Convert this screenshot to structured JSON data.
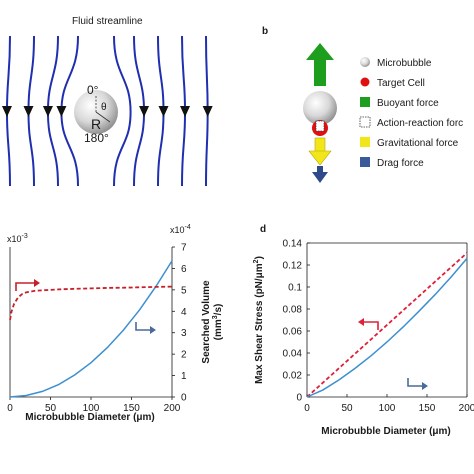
{
  "panel_a": {
    "title": "Fluid streamline",
    "angle_top": "0°",
    "angle_bottom": "180°",
    "theta_label": "θ",
    "radius_label": "R"
  },
  "panel_b": {
    "label": "b",
    "legend": [
      {
        "text": "Microbubble",
        "symbol": "sphere",
        "color": "#cfcfcf"
      },
      {
        "text": "Target Cell",
        "symbol": "circle",
        "color": "#e01010"
      },
      {
        "text": "Buoyant force",
        "symbol": "square",
        "color": "#1e9e1e"
      },
      {
        "text": "Action-reaction forc",
        "symbol": "dashed-square",
        "color": "#ffffff"
      },
      {
        "text": "Gravitational force",
        "symbol": "square",
        "color": "#f2e51a"
      },
      {
        "text": "Drag force",
        "symbol": "square",
        "color": "#3a5a9a"
      }
    ]
  },
  "colors": {
    "streamline": "#1f2fb0",
    "curve_blue": "#3d8fd0",
    "curve_red": "#c8202a",
    "arrow_slate": "#4a6a9a"
  },
  "chart_data": [
    {
      "panel": "c",
      "type": "line",
      "xlabel": "Microbubble Diameter (μm)",
      "x_ticks": [
        "0",
        "50",
        "100",
        "150",
        "200"
      ],
      "xlim": [
        0,
        200
      ],
      "y_left_multiplier": "x10",
      "y_left_multiplier_exp": "-3",
      "y_right_multiplier": "x10",
      "y_right_multiplier_exp": "-4",
      "ylabel_right": "Searched Volume",
      "ylabel_right_units": "(mm",
      "ylabel_right_units_exp": "3",
      "ylabel_right_units_tail": "/s)",
      "y_right_ticks": [
        "0",
        "1",
        "2",
        "3",
        "4",
        "5",
        "6",
        "7"
      ],
      "ylim_right": [
        0,
        7
      ],
      "ylim_left": [
        0,
        7
      ],
      "series": [
        {
          "axis": "right",
          "style": "solid",
          "color": "#3d8fd0",
          "x": [
            0,
            20,
            40,
            60,
            80,
            100,
            120,
            140,
            160,
            180,
            200
          ],
          "y": [
            0,
            0.07,
            0.26,
            0.58,
            1.03,
            1.6,
            2.3,
            3.12,
            4.07,
            5.15,
            6.35
          ]
        },
        {
          "axis": "left",
          "style": "dashed",
          "color": "#c8202a",
          "x": [
            0,
            2,
            5,
            10,
            15,
            20,
            30,
            40,
            60,
            80,
            100,
            120,
            140,
            160,
            180,
            200
          ],
          "y": [
            3.6,
            4.0,
            4.35,
            4.65,
            4.8,
            4.88,
            4.95,
            4.98,
            5.02,
            5.05,
            5.07,
            5.09,
            5.1,
            5.12,
            5.14,
            5.15
          ]
        }
      ]
    },
    {
      "panel": "d",
      "type": "line",
      "label": "d",
      "xlabel": "Microbubble Diameter (μm)",
      "ylabel": "Max Shear Stress (pN/μm",
      "ylabel_exp": "2",
      "ylabel_tail": ")",
      "x_ticks": [
        "0",
        "50",
        "100",
        "150",
        "200"
      ],
      "xlim": [
        0,
        200
      ],
      "y_ticks": [
        "0",
        "0.02",
        "0.04",
        "0.06",
        "0.08",
        "0.1",
        "0.12",
        "0.14"
      ],
      "ylim": [
        0,
        0.14
      ],
      "series": [
        {
          "style": "dashed",
          "color": "#e0203a",
          "x": [
            0,
            200
          ],
          "y": [
            0,
            0.131
          ]
        },
        {
          "style": "solid",
          "color": "#3d8fd0",
          "x": [
            0,
            20,
            40,
            60,
            80,
            100,
            120,
            140,
            160,
            180,
            200
          ],
          "y": [
            0,
            0.0065,
            0.0155,
            0.026,
            0.0375,
            0.05,
            0.0635,
            0.078,
            0.093,
            0.109,
            0.126
          ]
        }
      ]
    }
  ]
}
